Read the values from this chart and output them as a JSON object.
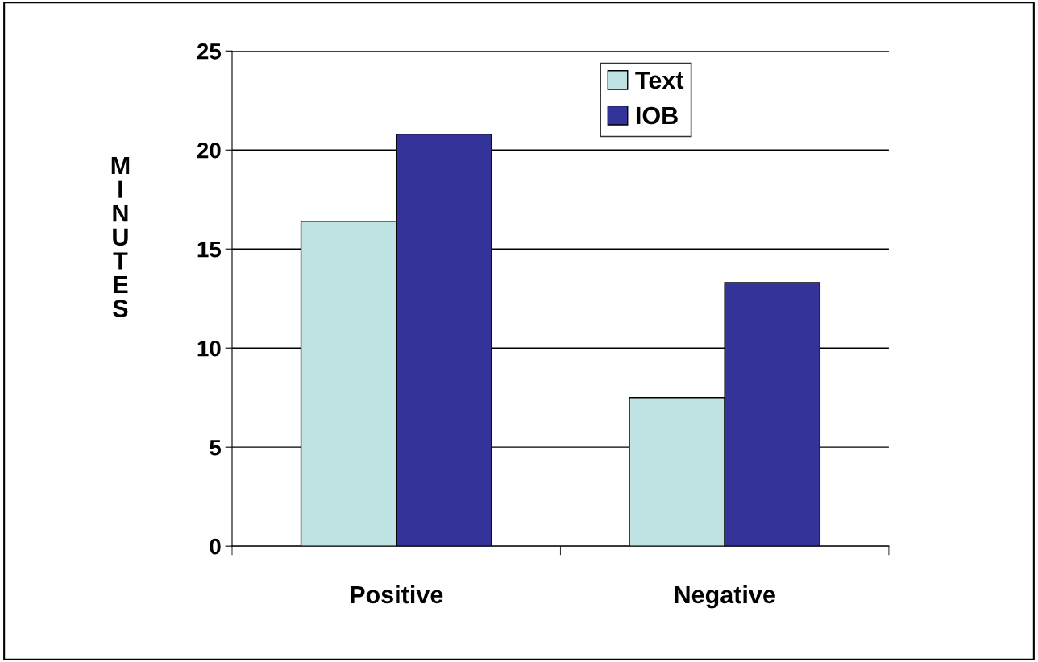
{
  "chart_data": {
    "type": "bar",
    "categories": [
      "Positive",
      "Negative"
    ],
    "series": [
      {
        "name": "Text",
        "color": "#bfe3e3",
        "values": [
          16.4,
          7.5
        ]
      },
      {
        "name": "IOB",
        "color": "#333399",
        "values": [
          20.8,
          13.3
        ]
      }
    ],
    "ylabel": "MINUTES",
    "ylim": [
      0,
      25
    ],
    "yticks": [
      0,
      5,
      10,
      15,
      20,
      25
    ],
    "grid": "y",
    "legend": "top"
  }
}
